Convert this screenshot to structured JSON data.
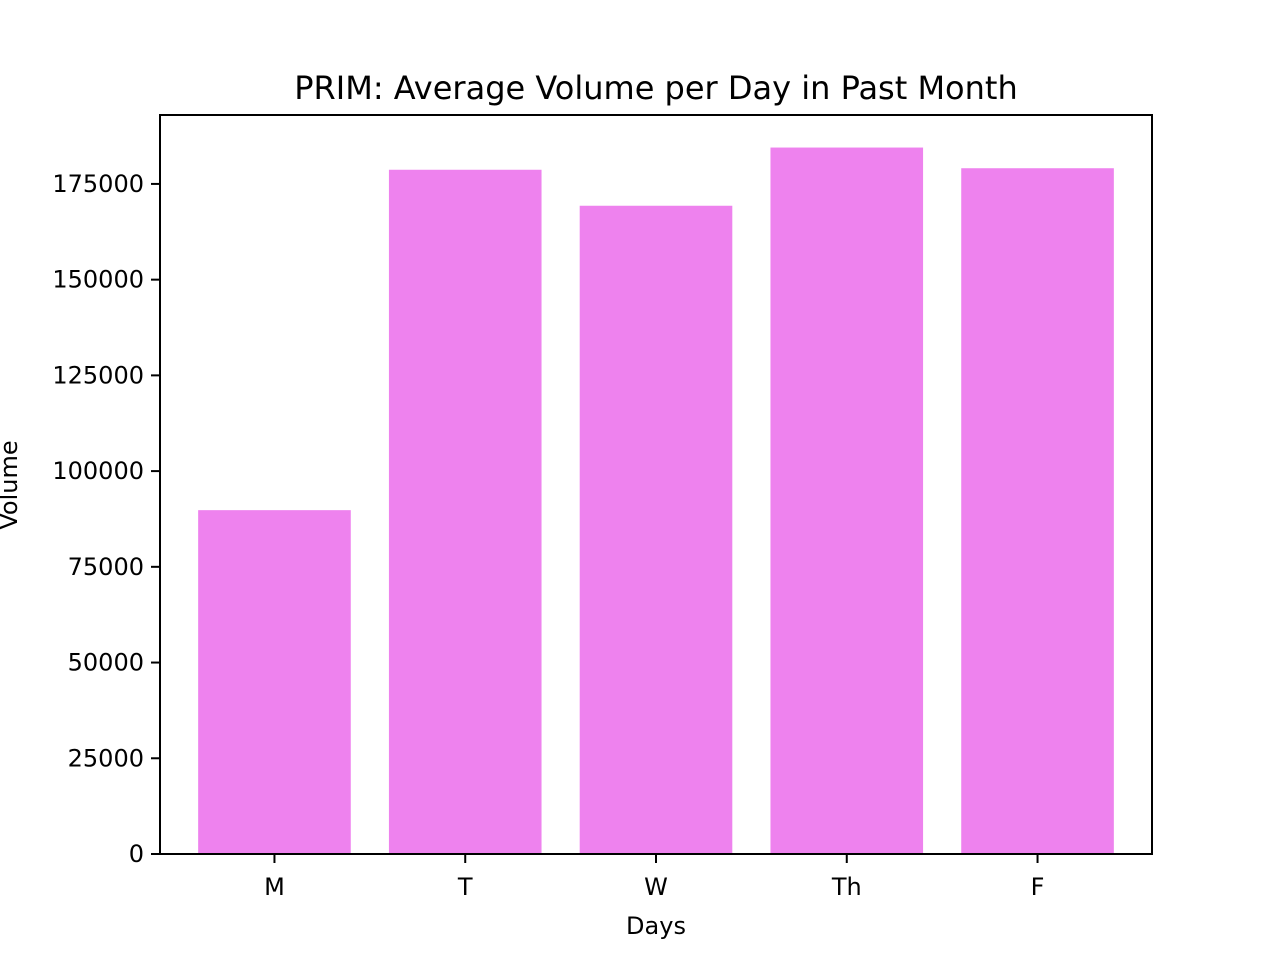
{
  "chart_data": {
    "type": "bar",
    "title": "PRIM: Average Volume per Day in Past Month",
    "xlabel": "Days",
    "ylabel": "Volume",
    "categories": [
      "M",
      "T",
      "W",
      "Th",
      "F"
    ],
    "values": [
      89800,
      178700,
      169300,
      184500,
      179100
    ],
    "ylim": [
      0,
      193000
    ],
    "yticks": [
      0,
      25000,
      50000,
      75000,
      100000,
      125000,
      150000,
      175000
    ],
    "ytick_labels": [
      "0",
      "25000",
      "50000",
      "75000",
      "100000",
      "125000",
      "150000",
      "175000"
    ],
    "bar_color": "#EE82EE",
    "grid": false,
    "legend": "none"
  }
}
